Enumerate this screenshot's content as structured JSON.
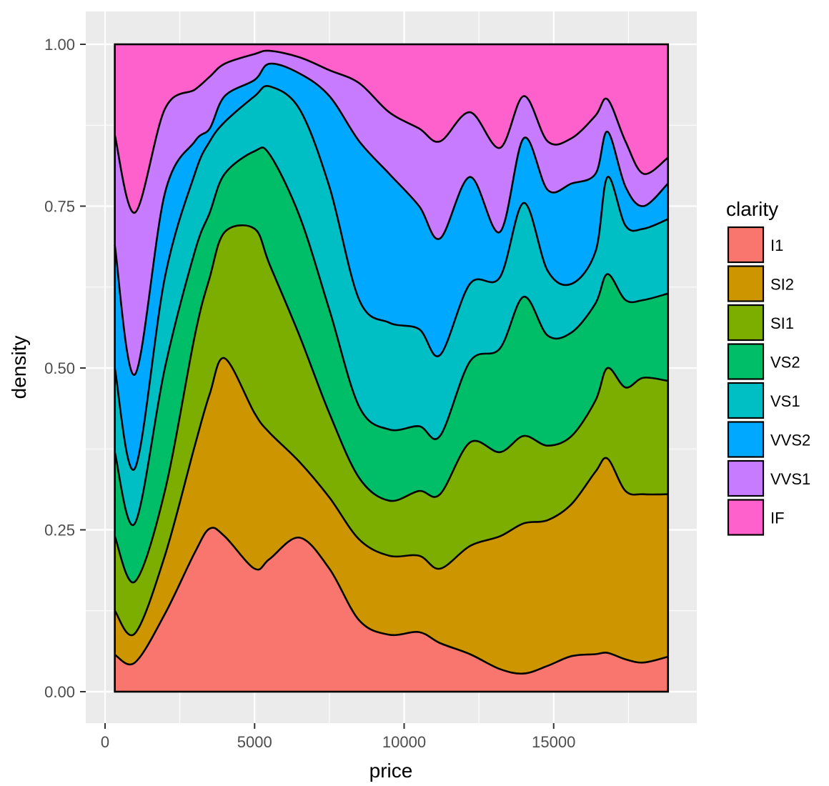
{
  "chart_data": {
    "type": "area",
    "subtype": "stacked density, filled to proportion (position = fill)",
    "xlabel": "price",
    "ylabel": "density",
    "xlim": [
      -300,
      19600
    ],
    "ylim": [
      -0.05,
      1.05
    ],
    "data_xrange": [
      326,
      18823
    ],
    "x_ticks": [
      0,
      5000,
      10000,
      15000
    ],
    "x_tick_labels": [
      "0",
      "5000",
      "10000",
      "15000"
    ],
    "y_ticks": [
      0,
      0.25,
      0.5,
      0.75,
      1.0
    ],
    "y_tick_labels": [
      "0.00",
      "0.25",
      "0.50",
      "0.75",
      "1.00"
    ],
    "grid": true,
    "legend": {
      "title": "clarity",
      "position": "right"
    },
    "x": [
      326,
      1000,
      2000,
      3000,
      3500,
      4000,
      5000,
      5500,
      6500,
      7500,
      8500,
      9500,
      10500,
      11200,
      12200,
      13200,
      14000,
      14800,
      15600,
      16400,
      16800,
      17400,
      18000,
      18823
    ],
    "boundaries": [
      [
        0.057,
        0.045,
        0.12,
        0.215,
        0.252,
        0.24,
        0.19,
        0.205,
        0.238,
        0.19,
        0.11,
        0.088,
        0.092,
        0.075,
        0.058,
        0.035,
        0.028,
        0.04,
        0.055,
        0.058,
        0.06,
        0.05,
        0.045,
        0.054
      ],
      [
        0.125,
        0.09,
        0.21,
        0.38,
        0.46,
        0.515,
        0.43,
        0.4,
        0.355,
        0.3,
        0.235,
        0.21,
        0.21,
        0.19,
        0.225,
        0.24,
        0.26,
        0.265,
        0.29,
        0.34,
        0.36,
        0.31,
        0.305,
        0.305
      ],
      [
        0.24,
        0.17,
        0.31,
        0.55,
        0.64,
        0.71,
        0.715,
        0.66,
        0.55,
        0.43,
        0.33,
        0.295,
        0.31,
        0.305,
        0.385,
        0.37,
        0.395,
        0.38,
        0.395,
        0.45,
        0.5,
        0.47,
        0.485,
        0.48
      ],
      [
        0.37,
        0.26,
        0.5,
        0.68,
        0.74,
        0.8,
        0.835,
        0.83,
        0.735,
        0.59,
        0.44,
        0.405,
        0.41,
        0.395,
        0.51,
        0.53,
        0.61,
        0.55,
        0.555,
        0.6,
        0.645,
        0.605,
        0.605,
        0.615
      ],
      [
        0.5,
        0.345,
        0.64,
        0.8,
        0.85,
        0.88,
        0.92,
        0.935,
        0.9,
        0.78,
        0.605,
        0.57,
        0.56,
        0.52,
        0.63,
        0.64,
        0.755,
        0.65,
        0.63,
        0.68,
        0.795,
        0.72,
        0.715,
        0.73
      ],
      [
        0.69,
        0.49,
        0.77,
        0.85,
        0.87,
        0.92,
        0.945,
        0.97,
        0.955,
        0.92,
        0.85,
        0.8,
        0.75,
        0.7,
        0.795,
        0.71,
        0.855,
        0.775,
        0.785,
        0.8,
        0.865,
        0.78,
        0.75,
        0.785
      ],
      [
        0.86,
        0.74,
        0.9,
        0.93,
        0.95,
        0.97,
        0.985,
        0.99,
        0.98,
        0.96,
        0.94,
        0.895,
        0.87,
        0.85,
        0.895,
        0.84,
        0.92,
        0.85,
        0.855,
        0.89,
        0.915,
        0.85,
        0.8,
        0.825
      ]
    ],
    "series": [
      {
        "name": "I1",
        "color": "#F8766D"
      },
      {
        "name": "SI2",
        "color": "#CD9600"
      },
      {
        "name": "SI1",
        "color": "#7CAE00"
      },
      {
        "name": "VS2",
        "color": "#00BE67"
      },
      {
        "name": "VS1",
        "color": "#00BFC4"
      },
      {
        "name": "VVS2",
        "color": "#00A9FF"
      },
      {
        "name": "VVS1",
        "color": "#C77CFF"
      },
      {
        "name": "IF",
        "color": "#FF61CC"
      }
    ],
    "panel_background": "#EBEBEB",
    "grid_color": "#FFFFFF"
  }
}
